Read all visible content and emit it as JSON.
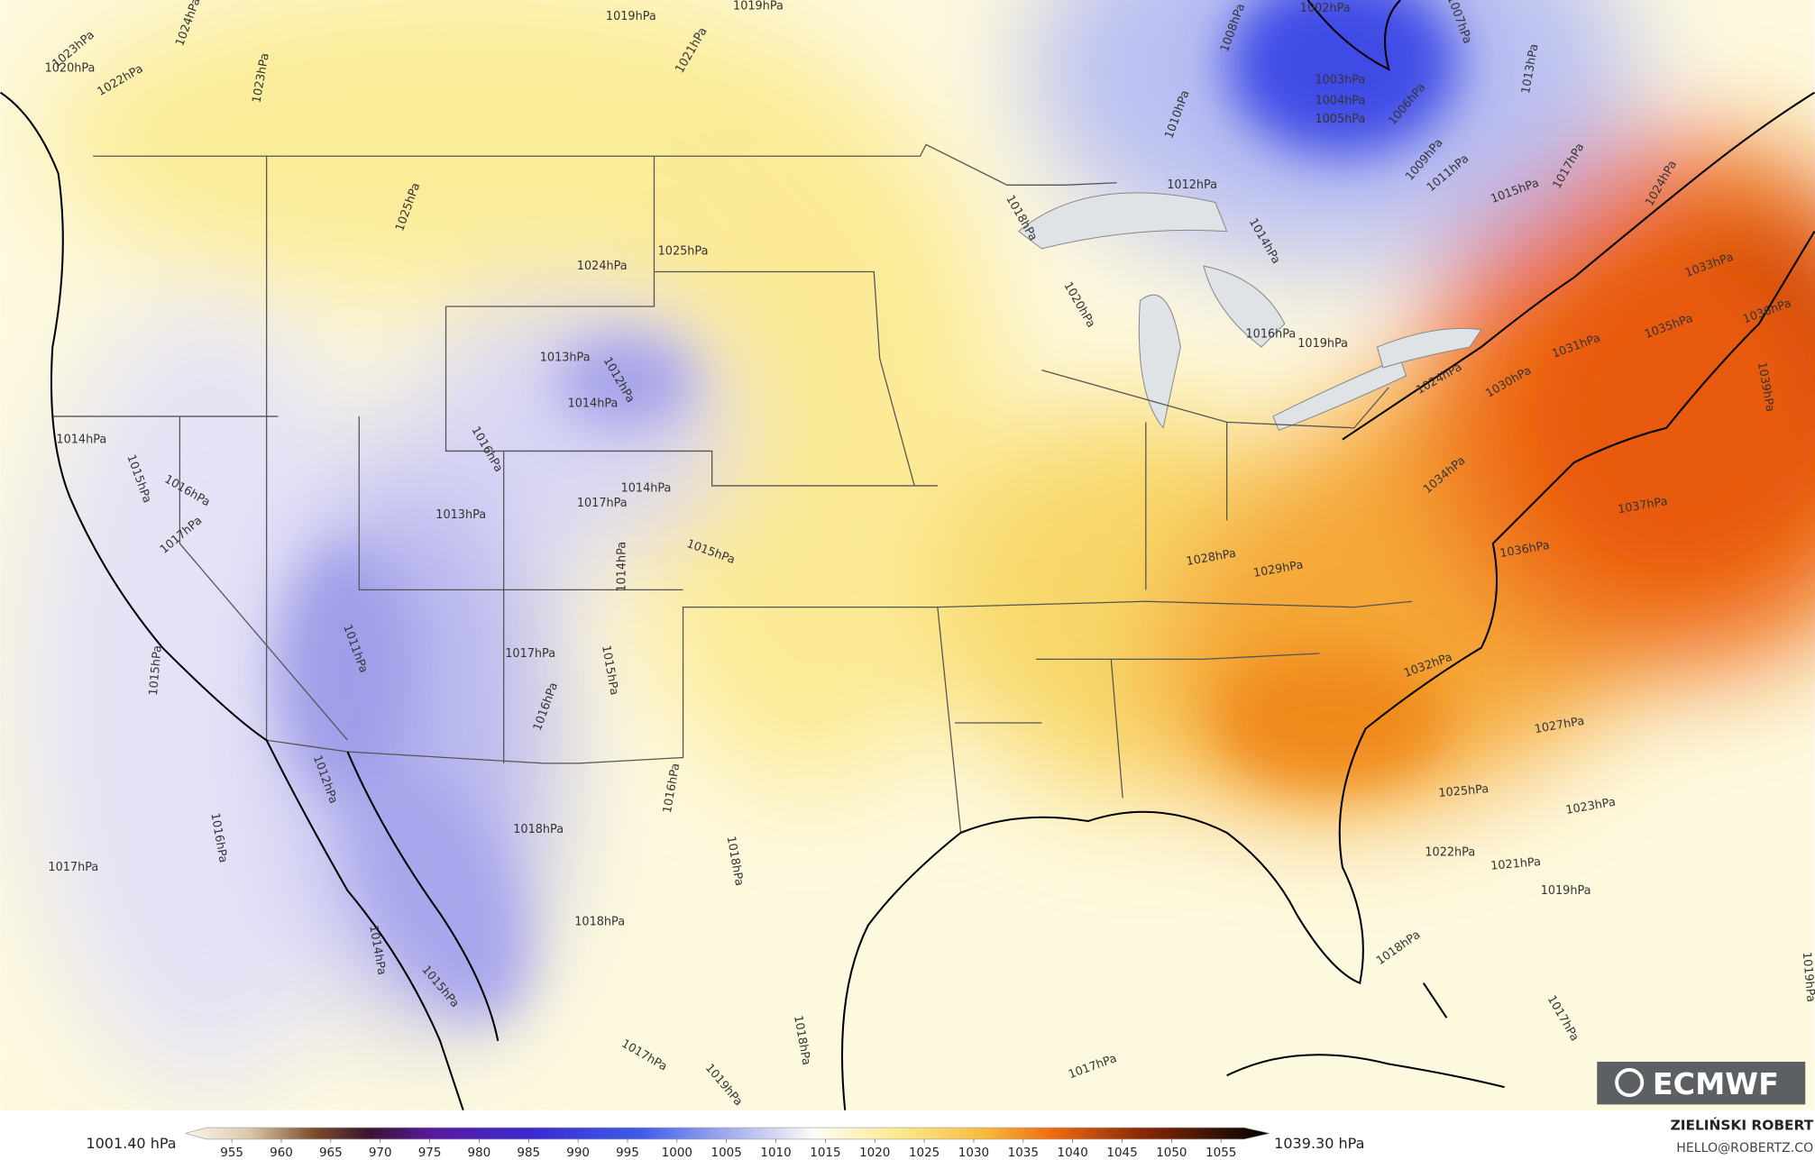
{
  "map": {
    "isobar_labels": [
      "1019hPa",
      "1019hPa",
      "1021hPa",
      "1023hPa",
      "1020hPa",
      "1022hPa",
      "1024hPa",
      "1023hPa",
      "1025hPa",
      "1025hPa",
      "1024hPa",
      "1018hPa",
      "1020hPa",
      "1012hPa",
      "1014hPa",
      "1016hPa",
      "1019hPa",
      "1010hPa",
      "1008hPa",
      "1002hPa",
      "1007hPa",
      "1003hPa",
      "1004hPa",
      "1005hPa",
      "1006hPa",
      "1009hPa",
      "1011hPa",
      "1013hPa",
      "1015hPa",
      "1017hPa",
      "1024hPa",
      "1033hPa",
      "1035hPa",
      "1036hPa",
      "1031hPa",
      "1030hPa",
      "1024hPa",
      "1039hPa",
      "1037hPa",
      "1036hPa",
      "1034hPa",
      "1028hPa",
      "1029hPa",
      "1032hPa",
      "1027hPa",
      "1025hPa",
      "1023hPa",
      "1022hPa",
      "1021hPa",
      "1019hPa",
      "1018hPa",
      "1017hPa",
      "1019hPa",
      "1017hPa",
      "1013hPa",
      "1012hPa",
      "1014hPa",
      "1016hPa",
      "1017hPa",
      "1014hPa",
      "1013hPa",
      "1015hPa",
      "1014hPa",
      "1014hPa",
      "1015hPa",
      "1016hPa",
      "1017hPa",
      "1011hPa",
      "1015hPa",
      "1017hPa",
      "1015hPa",
      "1016hPa",
      "1016hPa",
      "1012hPa",
      "1016hPa",
      "1017hPa",
      "1018hPa",
      "1018hPa",
      "1018hPa",
      "1014hPa",
      "1015hPa",
      "1018hPa",
      "1017hPa",
      "1019hPa"
    ]
  },
  "colorbar": {
    "min_label": "1001.40 hPa",
    "max_label": "1039.30 hPa",
    "ticks": [
      955,
      960,
      965,
      970,
      975,
      980,
      985,
      990,
      995,
      1000,
      1005,
      1010,
      1015,
      1020,
      1025,
      1030,
      1035,
      1040,
      1045,
      1050,
      1055
    ]
  },
  "credit": {
    "author": "ZIELIŃSKI ROBERT",
    "email": "HELLO@ROBERTZ.CO"
  },
  "logo": "ECMWF"
}
